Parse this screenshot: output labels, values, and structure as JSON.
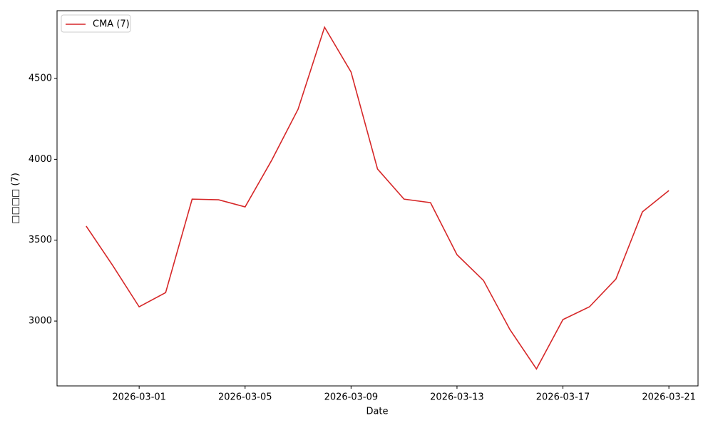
{
  "chart_data": {
    "type": "line",
    "xlabel": "Date",
    "ylabel": "□□□□ (7)",
    "x": [
      "2026-02-27",
      "2026-02-28",
      "2026-03-01",
      "2026-03-02",
      "2026-03-03",
      "2026-03-04",
      "2026-03-05",
      "2026-03-06",
      "2026-03-07",
      "2026-03-08",
      "2026-03-09",
      "2026-03-10",
      "2026-03-11",
      "2026-03-12",
      "2026-03-13",
      "2026-03-14",
      "2026-03-15",
      "2026-03-16",
      "2026-03-17",
      "2026-03-18",
      "2026-03-19",
      "2026-03-20",
      "2026-03-21"
    ],
    "series": [
      {
        "name": "CMA (7)",
        "color": "#d62728",
        "values": [
          3587,
          3344,
          3088,
          3176,
          3754,
          3750,
          3706,
          3993,
          4310,
          4817,
          4540,
          3940,
          3754,
          3732,
          3410,
          3251,
          2947,
          2704,
          3009,
          3088,
          3260,
          3675,
          3807
        ]
      }
    ],
    "xlim": [
      "2026-02-25T21:36",
      "2026-03-22T02:24"
    ],
    "xticks": [
      "2026-03-01",
      "2026-03-05",
      "2026-03-09",
      "2026-03-13",
      "2026-03-17",
      "2026-03-21"
    ],
    "ylim": [
      2599,
      4919
    ],
    "yticks": [
      3000,
      3500,
      4000,
      4500
    ],
    "legend": "upper-left",
    "grid": false
  }
}
